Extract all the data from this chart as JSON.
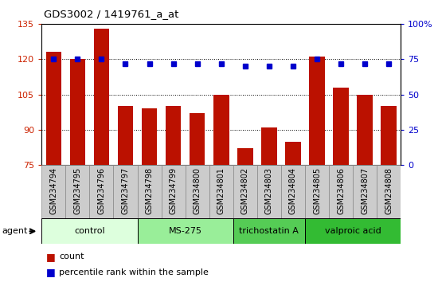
{
  "title": "GDS3002 / 1419761_a_at",
  "categories": [
    "GSM234794",
    "GSM234795",
    "GSM234796",
    "GSM234797",
    "GSM234798",
    "GSM234799",
    "GSM234800",
    "GSM234801",
    "GSM234802",
    "GSM234803",
    "GSM234804",
    "GSM234805",
    "GSM234806",
    "GSM234807",
    "GSM234808"
  ],
  "bar_values": [
    123,
    120,
    133,
    100,
    99,
    100,
    97,
    105,
    82,
    91,
    85,
    121,
    108,
    105,
    100
  ],
  "percentile_values": [
    75,
    75,
    75,
    72,
    72,
    72,
    72,
    72,
    70,
    70,
    70,
    75,
    72,
    72,
    72
  ],
  "bar_color": "#bb1100",
  "dot_color": "#0000cc",
  "ylim_left": [
    75,
    135
  ],
  "ylim_right": [
    0,
    100
  ],
  "yticks_left": [
    75,
    90,
    105,
    120,
    135
  ],
  "yticks_right": [
    0,
    25,
    50,
    75,
    100
  ],
  "grid_values": [
    90,
    105,
    120
  ],
  "agent_groups": [
    {
      "label": "control",
      "start": 0,
      "end": 4,
      "color": "#ddffdd"
    },
    {
      "label": "MS-275",
      "start": 4,
      "end": 8,
      "color": "#99ee99"
    },
    {
      "label": "trichostatin A",
      "start": 8,
      "end": 11,
      "color": "#55cc55"
    },
    {
      "label": "valproic acid",
      "start": 11,
      "end": 15,
      "color": "#33bb33"
    }
  ],
  "legend_count_label": "count",
  "legend_percentile_label": "percentile rank within the sample",
  "agent_label": "agent",
  "background_color": "#ffffff",
  "xticklabel_bg": "#cccccc"
}
